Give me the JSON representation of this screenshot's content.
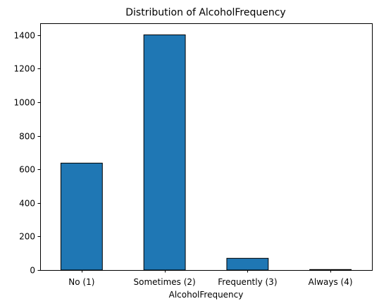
{
  "chart_data": {
    "type": "bar",
    "title": "Distribution of AlcoholFrequency",
    "xlabel": "AlcoholFrequency",
    "ylabel": "",
    "categories": [
      "No (1)",
      "Sometimes (2)",
      "Frequently (3)",
      "Always (4)"
    ],
    "values": [
      637,
      1401,
      70,
      3
    ],
    "ylim": [
      0,
      1470
    ],
    "yticks": [
      0,
      200,
      400,
      600,
      800,
      1000,
      1200,
      1400
    ],
    "grid": false,
    "legend": "none",
    "bar_color": "#1f77b4",
    "edge_color": "#000000"
  }
}
